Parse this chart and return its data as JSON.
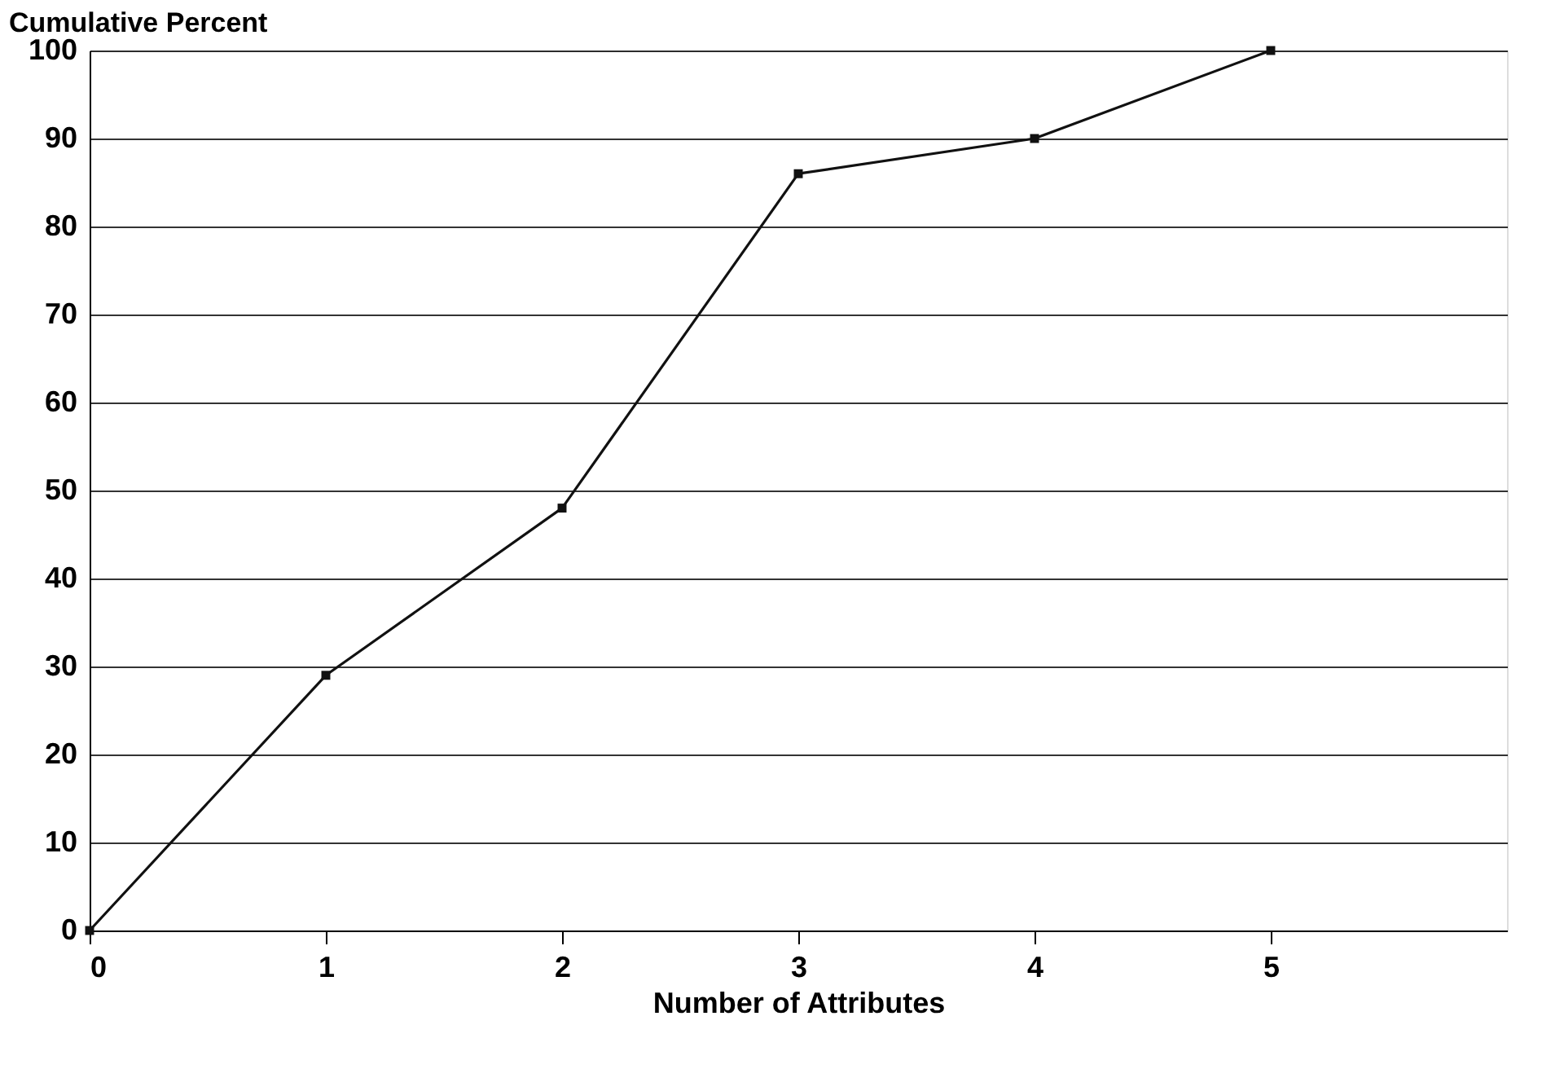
{
  "chart_data": {
    "type": "line",
    "ylabel": "Cumulative Percent",
    "xlabel": "Number of Attributes",
    "x": [
      0,
      1,
      2,
      3,
      4,
      5
    ],
    "series": [
      {
        "color": "#111111",
        "values": [
          0,
          29,
          48,
          86,
          90,
          100
        ]
      }
    ],
    "xlim": [
      0,
      6
    ],
    "xticks": [
      0,
      1,
      2,
      3,
      4,
      5
    ],
    "ylim": [
      0,
      100
    ],
    "yticks": [
      0,
      10,
      20,
      30,
      40,
      50,
      60,
      70,
      80,
      90,
      100
    ],
    "grid": "y",
    "marker": "square",
    "line_style": "solid",
    "legend": false
  }
}
